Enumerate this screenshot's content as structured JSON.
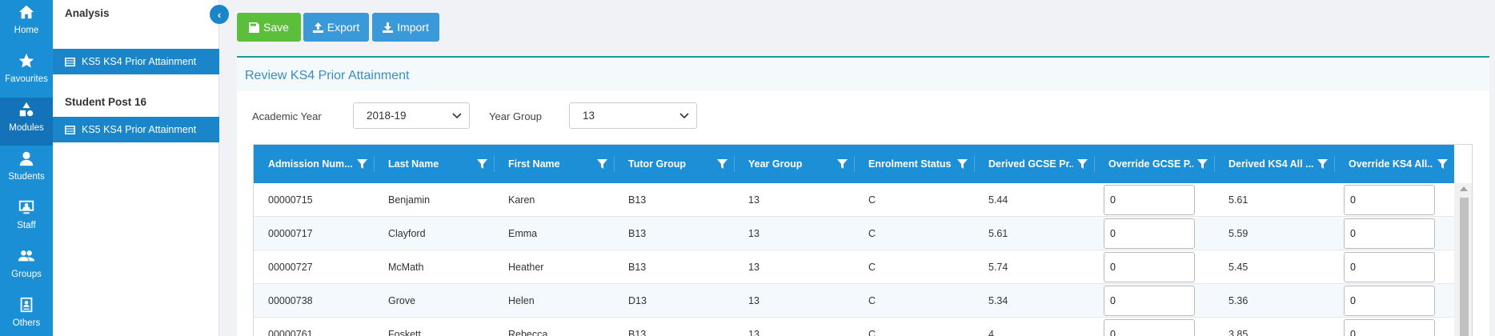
{
  "rail": [
    {
      "label": "Home",
      "icon": "home-icon"
    },
    {
      "label": "Favourites",
      "icon": "star-icon"
    },
    {
      "label": "Modules",
      "icon": "shapes-icon"
    },
    {
      "label": "Students",
      "icon": "user-icon"
    },
    {
      "label": "Staff",
      "icon": "staff-board-icon"
    },
    {
      "label": "Groups",
      "icon": "group-icon"
    },
    {
      "label": "Others",
      "icon": "id-card-icon"
    }
  ],
  "subnav": {
    "section1": "Analysis",
    "item1": "KS5 KS4 Prior Attainment",
    "section2": "Student Post 16",
    "item2": "KS5 KS4 Prior Attainment"
  },
  "toolbar": {
    "save": "Save",
    "export": "Export",
    "import": "Import"
  },
  "panel": {
    "title": "Review KS4 Prior Attainment"
  },
  "filters": {
    "academic_year_label": "Academic Year",
    "academic_year_value": "2018-19",
    "year_group_label": "Year Group",
    "year_group_value": "13"
  },
  "grid": {
    "columns": [
      "Admission Num...",
      "Last Name",
      "First Name",
      "Tutor Group",
      "Year Group",
      "Enrolment Status",
      "Derived GCSE Pr...",
      "Override GCSE P...",
      "Derived KS4 All ...",
      "Override KS4 All..."
    ],
    "rows": [
      [
        "00000715",
        "Benjamin",
        "Karen",
        "B13",
        "13",
        "C",
        "5.44",
        "0",
        "5.61",
        "0"
      ],
      [
        "00000717",
        "Clayford",
        "Emma",
        "B13",
        "13",
        "C",
        "5.61",
        "0",
        "5.59",
        "0"
      ],
      [
        "00000727",
        "McMath",
        "Heather",
        "B13",
        "13",
        "C",
        "5.74",
        "0",
        "5.45",
        "0"
      ],
      [
        "00000738",
        "Grove",
        "Helen",
        "D13",
        "13",
        "C",
        "5.34",
        "0",
        "5.36",
        "0"
      ],
      [
        "00000761",
        "Foskett",
        "Rebecca",
        "B13",
        "13",
        "C",
        "4",
        "0",
        "3.85",
        "0"
      ]
    ]
  },
  "colors": {
    "rail": "#1a8fd6",
    "header": "#1d8fd7",
    "save": "#5cbf3b",
    "button": "#3a9ad9"
  }
}
